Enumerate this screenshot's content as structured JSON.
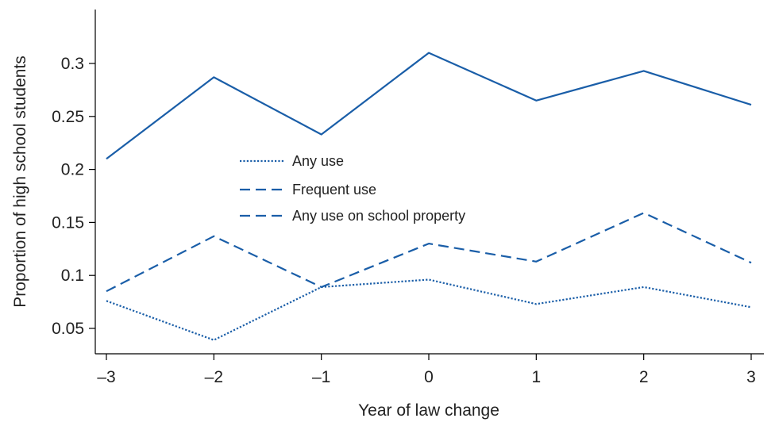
{
  "chart_data": {
    "type": "line",
    "title": "",
    "xlabel": "Year of law change",
    "ylabel": "Proportion of high school students",
    "x": [
      -3,
      -2,
      -1,
      0,
      1,
      2,
      3
    ],
    "x_tick_labels": [
      "–3",
      "–2",
      "–1",
      "0",
      "1",
      "2",
      "3"
    ],
    "y_ticks": [
      0.05,
      0.1,
      0.15,
      0.2,
      0.25,
      0.3
    ],
    "y_tick_labels": [
      "0.05",
      "0.1",
      "0.15",
      "0.2",
      "0.25",
      "0.3"
    ],
    "xlim": [
      -3,
      3
    ],
    "ylim": [
      0.025,
      0.35
    ],
    "grid": false,
    "legend_position": "center-left",
    "line_color": "#1a5ea8",
    "series": [
      {
        "name": "Any use",
        "style": "dotted",
        "values": [
          0.076,
          0.039,
          0.089,
          0.096,
          0.073,
          0.089,
          0.07
        ]
      },
      {
        "name": "Frequent use",
        "style": "dashed",
        "values": [
          0.085,
          0.137,
          0.089,
          0.13,
          0.113,
          0.159,
          0.112
        ]
      },
      {
        "name": "Any use on school property",
        "style": "dashed",
        "values": [
          0.21,
          0.287,
          0.233,
          0.31,
          0.265,
          0.293,
          0.261
        ]
      }
    ]
  }
}
